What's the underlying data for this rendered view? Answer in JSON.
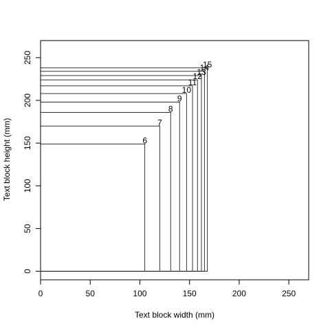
{
  "chart_data": {
    "type": "line",
    "title": "",
    "xlabel": "Text block width (mm)",
    "ylabel": "Text block height (mm)",
    "xlim": [
      0,
      270
    ],
    "ylim": [
      -10,
      270
    ],
    "xticks": [
      0,
      50,
      100,
      150,
      200,
      250
    ],
    "yticks": [
      0,
      50,
      100,
      150,
      200,
      250
    ],
    "grid": false,
    "series": [
      {
        "label": "6",
        "width": 105,
        "height": 149
      },
      {
        "label": "7",
        "width": 120,
        "height": 170
      },
      {
        "label": "8",
        "width": 131,
        "height": 186
      },
      {
        "label": "9",
        "width": 140,
        "height": 198
      },
      {
        "label": "10",
        "width": 147,
        "height": 208
      },
      {
        "label": "11",
        "width": 153,
        "height": 217
      },
      {
        "label": "12",
        "width": 158,
        "height": 224
      },
      {
        "label": "13",
        "width": 162,
        "height": 229
      },
      {
        "label": "14",
        "width": 165,
        "height": 234
      },
      {
        "label": "15",
        "width": 168,
        "height": 238
      }
    ]
  }
}
